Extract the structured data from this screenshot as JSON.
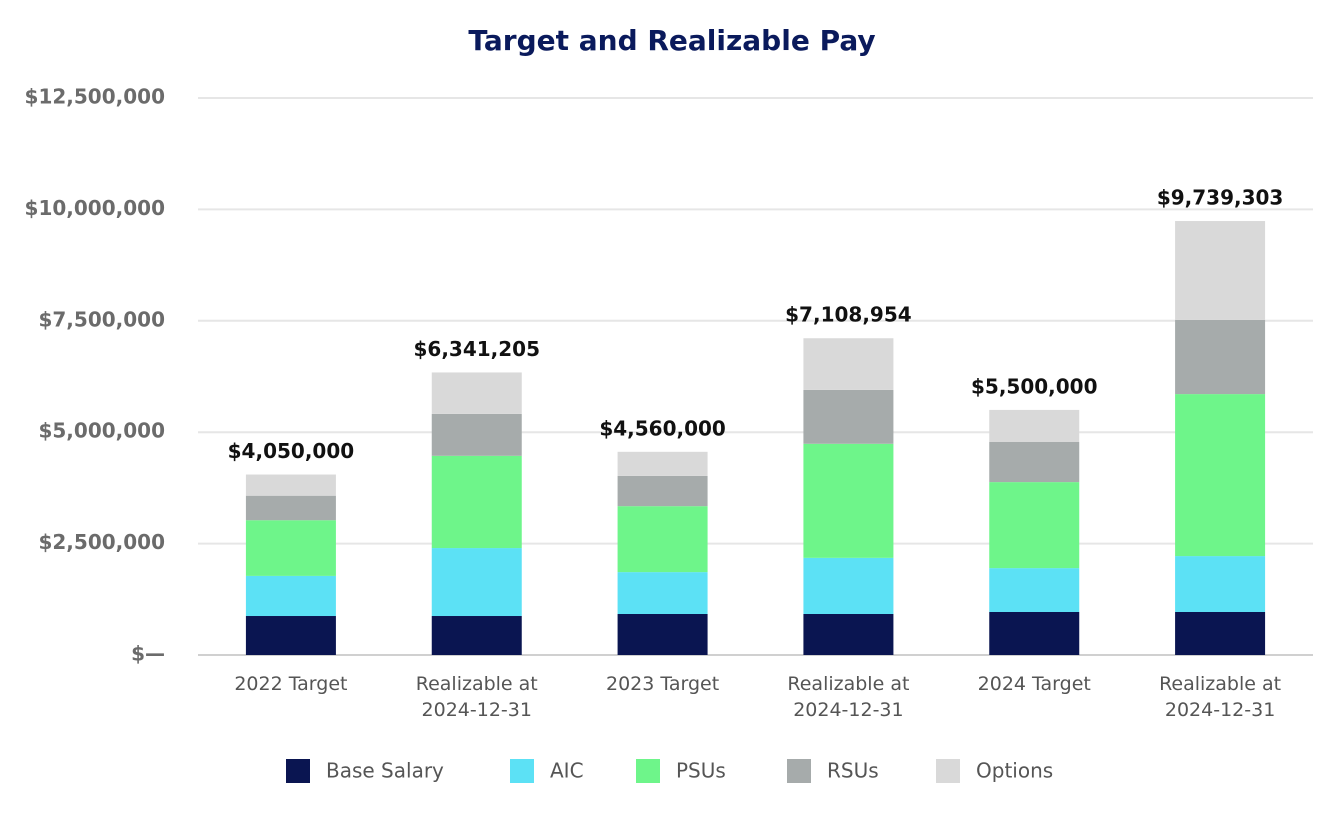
{
  "chart_data": {
    "type": "stacked_bar",
    "title": "Target and Realizable Pay",
    "categories": [
      "2022 Target",
      "Realizable at 2024-12-31",
      "2023 Target",
      "Realizable at 2024-12-31",
      "2024 Target",
      "Realizable at 2024-12-31"
    ],
    "series": [
      {
        "name": "Base Salary",
        "color": "#0a1551",
        "values": [
          875000,
          875000,
          920000,
          920000,
          965000,
          965000
        ]
      },
      {
        "name": "AIC",
        "color": "#5ce1f5",
        "values": [
          900000,
          1525000,
          940000,
          1260000,
          985000,
          1255000
        ]
      },
      {
        "name": "PSUs",
        "color": "#6ef58a",
        "values": [
          1250000,
          2070000,
          1480000,
          2560000,
          1930000,
          3635000
        ]
      },
      {
        "name": "RSUs",
        "color": "#a6abab",
        "values": [
          550000,
          940000,
          680000,
          1210000,
          900000,
          1665000
        ]
      },
      {
        "name": "Options",
        "color": "#d9d9d9",
        "values": [
          475000,
          931205,
          540000,
          1158954,
          720000,
          2219303
        ]
      }
    ],
    "totals": [
      4050000,
      6341205,
      4560000,
      7108954,
      5500000,
      9739303
    ],
    "total_labels": [
      "$4,050,000",
      "$6,341,205",
      "$4,560,000",
      "$7,108,954",
      "$5,500,000",
      "$9,739,303"
    ],
    "ylim": [
      0,
      12500000
    ],
    "yticks": [
      {
        "value": 0,
        "label": "$—"
      },
      {
        "value": 2500000,
        "label": "$2,500,000"
      },
      {
        "value": 5000000,
        "label": "$5,000,000"
      },
      {
        "value": 7500000,
        "label": "$7,500,000"
      },
      {
        "value": 10000000,
        "label": "$10,000,000"
      },
      {
        "value": 12500000,
        "label": "$12,500,000"
      }
    ],
    "grid": true,
    "legend": "bottom"
  }
}
